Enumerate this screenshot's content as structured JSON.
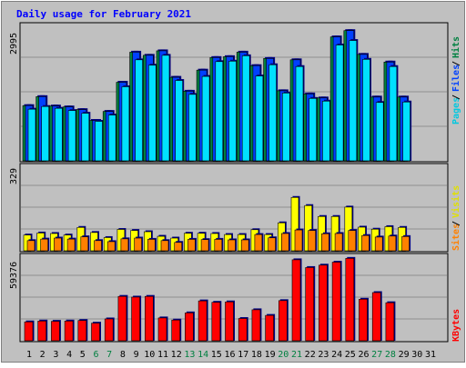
{
  "chart_data": {
    "type": "bar",
    "title": "Daily usage for February 2021",
    "categories": [
      "1",
      "2",
      "3",
      "4",
      "5",
      "6",
      "7",
      "8",
      "9",
      "10",
      "11",
      "12",
      "13",
      "14",
      "15",
      "16",
      "17",
      "18",
      "19",
      "20",
      "21",
      "22",
      "23",
      "24",
      "25",
      "26",
      "27",
      "28",
      "29",
      "30",
      "31"
    ],
    "weekend_days": [
      "6",
      "7",
      "13",
      "14",
      "20",
      "21",
      "27",
      "28"
    ],
    "panels": [
      {
        "id": "hits-files-pages",
        "scale_max_label": "2995",
        "scale_max": 2995,
        "series": [
          {
            "name": "Hits",
            "color": "#008040",
            "values": [
              1230,
              1430,
              1220,
              1200,
              1140,
              900,
              1100,
              1750,
              2420,
              2350,
              2450,
              1860,
              1550,
              2020,
              2300,
              2320,
              2420,
              2120,
              2280,
              1560,
              2250,
              1490,
              1400,
              2760,
              2900,
              2370,
              1420,
              2200,
              1420,
              null,
              null
            ]
          },
          {
            "name": "Files",
            "color": "#0040ff",
            "values": [
              1230,
              1430,
              1220,
              1200,
              1140,
              900,
              1100,
              1750,
              2420,
              2350,
              2450,
              1860,
              1550,
              2020,
              2300,
              2320,
              2420,
              2120,
              2280,
              1560,
              2250,
              1490,
              1400,
              2760,
              2900,
              2370,
              1420,
              2200,
              1420,
              null,
              null
            ]
          },
          {
            "name": "Pages",
            "color": "#00e0ff",
            "values": [
              1150,
              1210,
              1170,
              1120,
              1060,
              880,
              1020,
              1650,
              2250,
              2130,
              2350,
              1790,
              1480,
              1880,
              2210,
              2220,
              2340,
              1890,
              2140,
              1510,
              2100,
              1390,
              1330,
              2580,
              2680,
              2260,
              1300,
              2100,
              1310,
              null,
              null
            ]
          }
        ]
      },
      {
        "id": "visits-sites",
        "scale_max_label": "329",
        "scale_max": 329,
        "series": [
          {
            "name": "Visits",
            "color": "#ffff00",
            "values": [
              62,
              70,
              68,
              62,
              92,
              72,
              52,
              84,
              80,
              75,
              57,
              50,
              69,
              69,
              68,
              64,
              64,
              83,
              64,
              110,
              210,
              178,
              135,
              135,
              172,
              93,
              85,
              95,
              92,
              null,
              null
            ]
          },
          {
            "name": "Sites",
            "color": "#ff8000",
            "values": [
              40,
              46,
              50,
              46,
              55,
              40,
              36,
              47,
              50,
              45,
              40,
              33,
              45,
              44,
              45,
              43,
              43,
              64,
              51,
              68,
              82,
              80,
              67,
              68,
              80,
              60,
              54,
              58,
              56,
              null,
              null
            ]
          }
        ]
      },
      {
        "id": "kbytes",
        "scale_max_label": "59376",
        "scale_max": 59376,
        "series": [
          {
            "name": "KBytes",
            "color": "#ff0000",
            "values": [
              13400,
              14000,
              13800,
              14000,
              14400,
              12500,
              15500,
              31500,
              31000,
              31500,
              16200,
              14700,
              19800,
              28300,
              27300,
              27600,
              15800,
              22000,
              18000,
              28500,
              57500,
              52000,
              53700,
              55800,
              58500,
              29500,
              34200,
              27000,
              null,
              null,
              null
            ]
          }
        ]
      }
    ]
  }
}
